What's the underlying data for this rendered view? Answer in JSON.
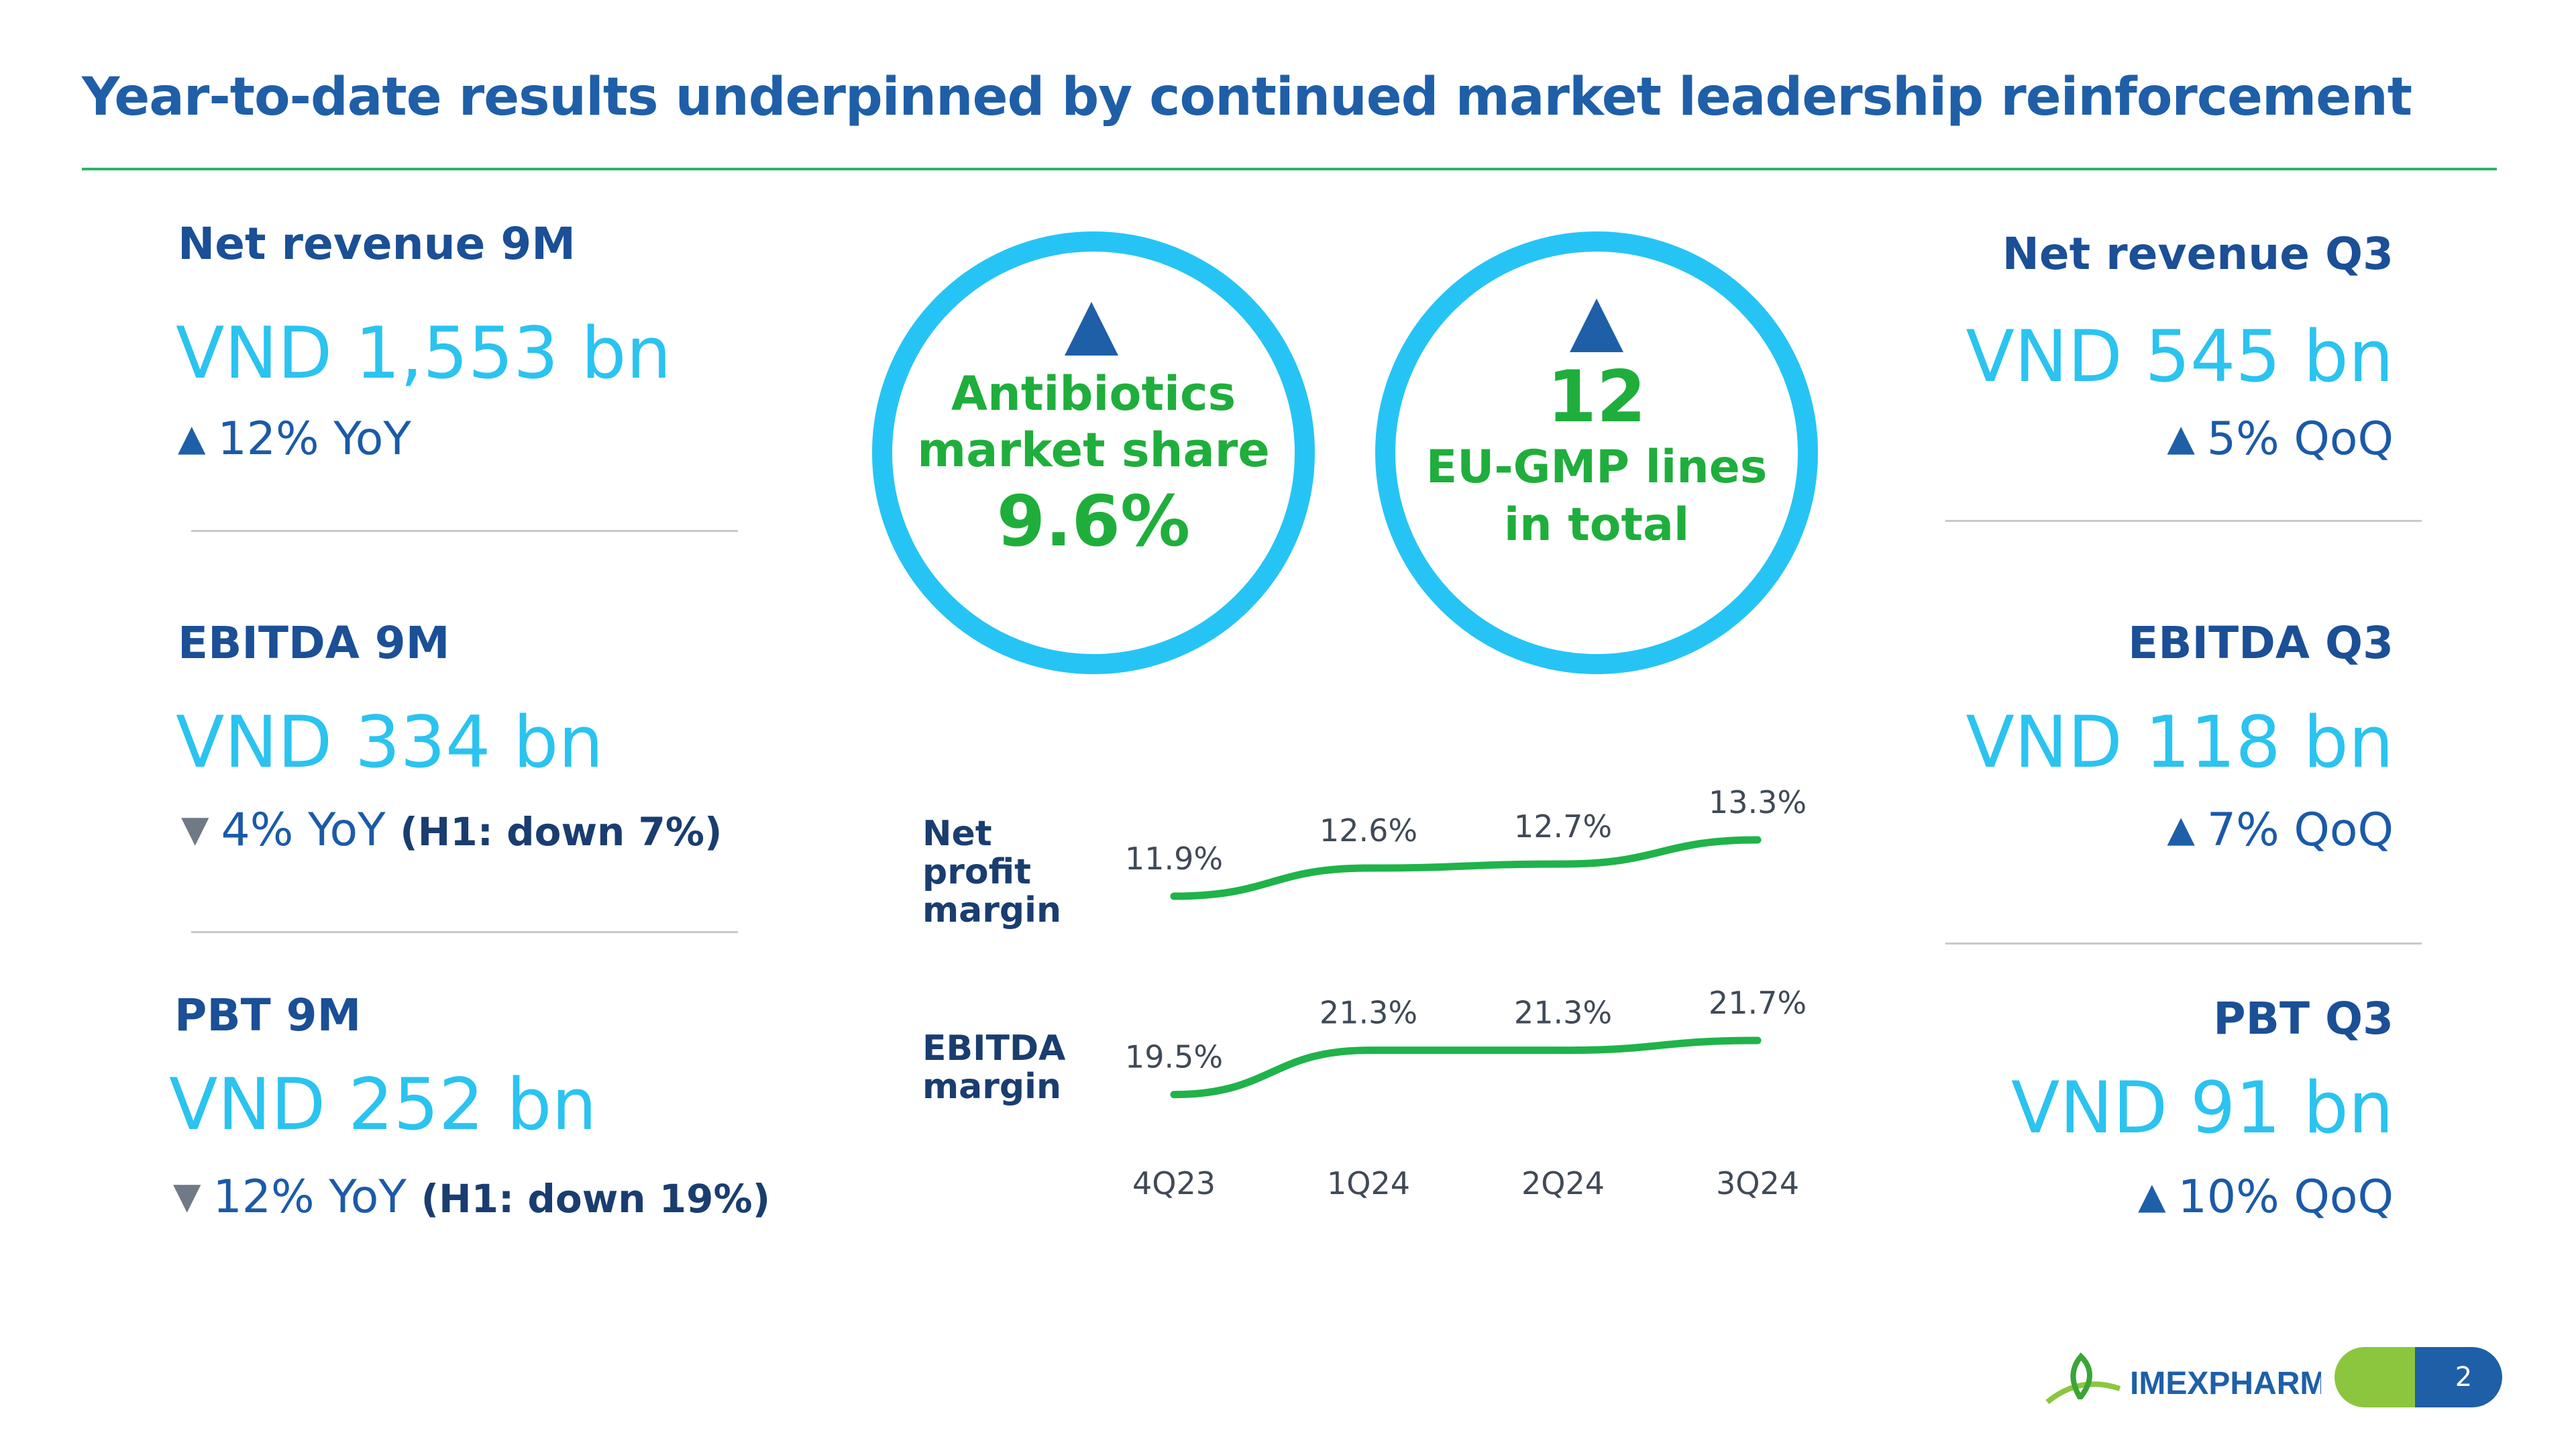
{
  "header": {
    "title": "Year-to-date results underpinned by continued market leadership reinforcement"
  },
  "left_kpis": [
    {
      "label": "Net revenue 9M",
      "value": "VND 1,553 bn",
      "direction": "up",
      "change": "12% YoY",
      "note": ""
    },
    {
      "label": "EBITDA 9M",
      "value": "VND 334 bn",
      "direction": "down",
      "change": "4% YoY",
      "note": "(H1: down 7%)"
    },
    {
      "label": "PBT 9M",
      "value": "VND 252 bn",
      "direction": "down",
      "change": "12% YoY",
      "note": "(H1: down 19%)"
    }
  ],
  "right_kpis": [
    {
      "label": "Net revenue Q3",
      "value": "VND 545 bn",
      "direction": "up",
      "change": "5% QoQ"
    },
    {
      "label": "EBITDA Q3",
      "value": "VND 118 bn",
      "direction": "up",
      "change": "7% QoQ"
    },
    {
      "label": "PBT Q3",
      "value": "VND 91 bn",
      "direction": "up",
      "change": "10% QoQ"
    }
  ],
  "highlights": {
    "market_share": {
      "line1": "Antibiotics",
      "line2": "market share",
      "value": "9.6%"
    },
    "eu_gmp": {
      "value": "12",
      "line1": "EU-GMP lines",
      "line2": "in total"
    }
  },
  "chart_data": {
    "type": "line",
    "categories": [
      "4Q23",
      "1Q24",
      "2Q24",
      "3Q24"
    ],
    "series": [
      {
        "name": "Net profit margin",
        "values": [
          11.9,
          12.6,
          12.7,
          13.3
        ],
        "labels": [
          "11.9%",
          "12.6%",
          "12.7%",
          "13.3%"
        ],
        "color": "#1fb34a"
      },
      {
        "name": "EBITDA margin",
        "values": [
          19.5,
          21.3,
          21.3,
          21.7
        ],
        "labels": [
          "19.5%",
          "21.3%",
          "21.3%",
          "21.7%"
        ],
        "color": "#1fb34a"
      }
    ],
    "row_labels": [
      [
        "Net",
        "profit",
        "margin"
      ],
      [
        "EBITDA",
        "margin"
      ]
    ]
  },
  "footer": {
    "brand": "IMEXPHARM",
    "page_number": "2"
  }
}
